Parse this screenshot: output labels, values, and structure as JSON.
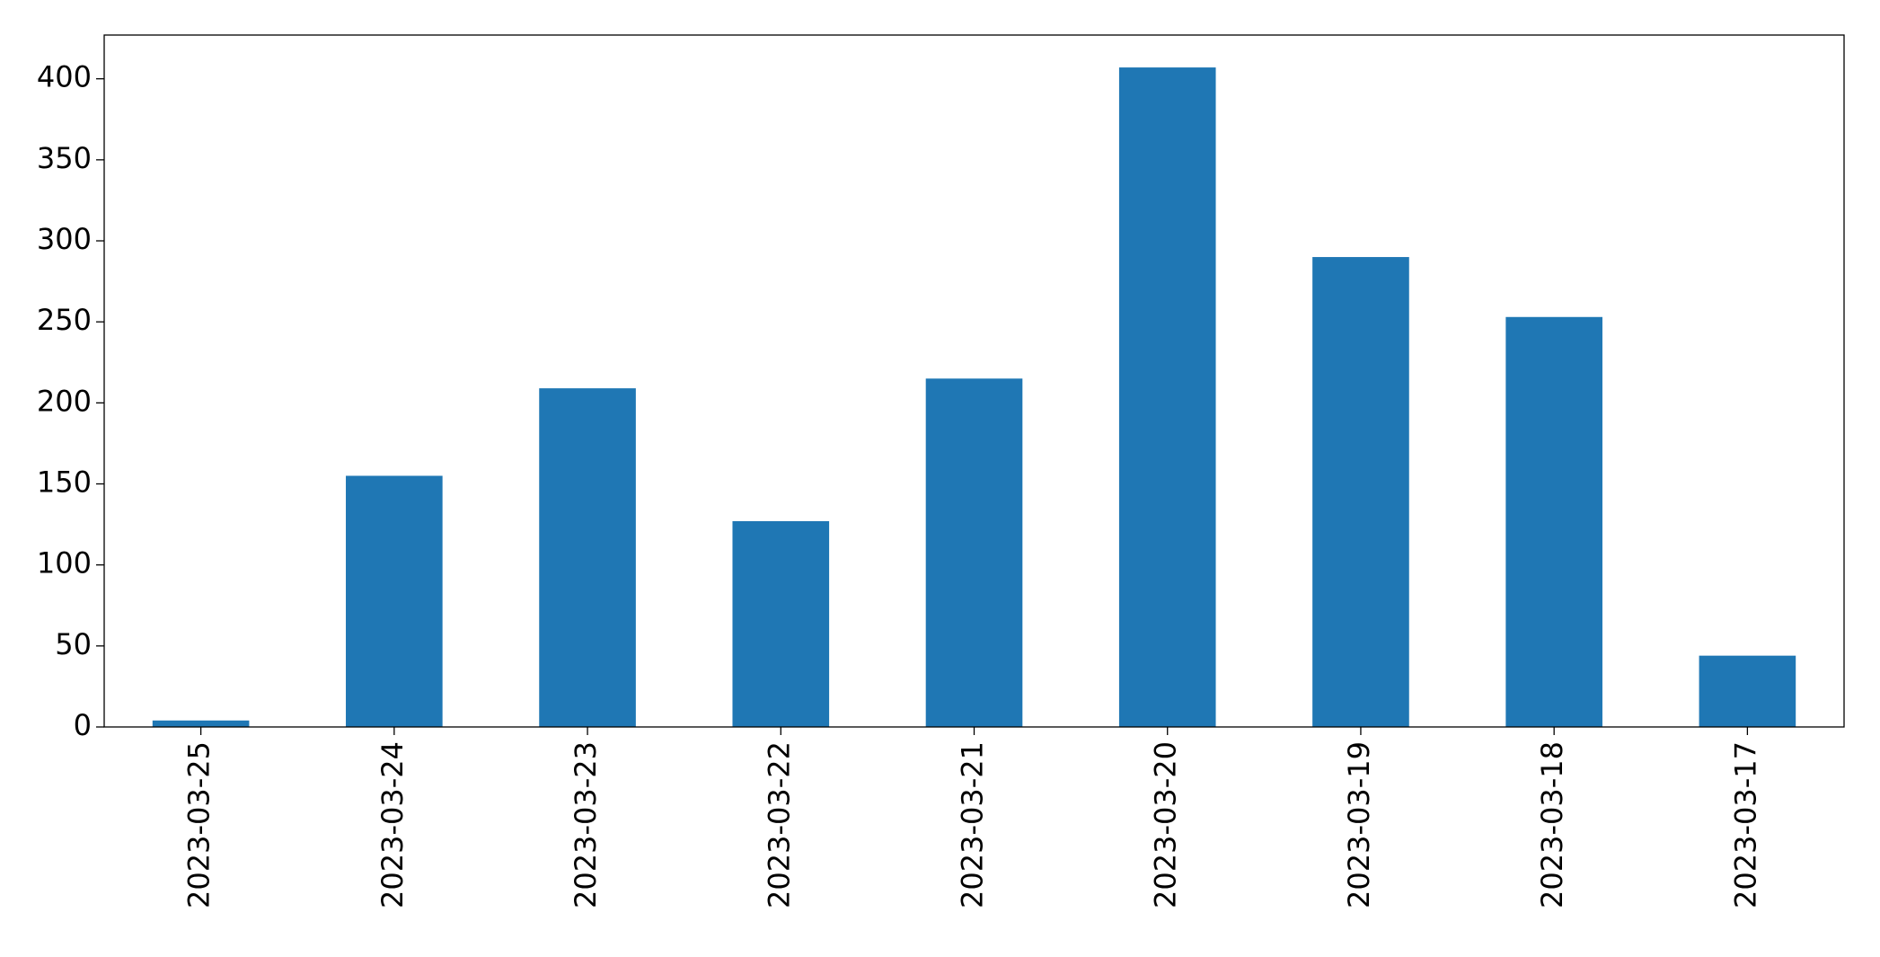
{
  "chart_data": {
    "type": "bar",
    "categories": [
      "2023-03-25",
      "2023-03-24",
      "2023-03-23",
      "2023-03-22",
      "2023-03-21",
      "2023-03-20",
      "2023-03-19",
      "2023-03-18",
      "2023-03-17"
    ],
    "values": [
      4,
      155,
      209,
      127,
      215,
      407,
      290,
      253,
      44
    ],
    "color": "#1f77b4",
    "ylim": [
      0,
      427
    ],
    "yticks": [
      0,
      50,
      100,
      150,
      200,
      250,
      300,
      350,
      400
    ],
    "grid": false
  }
}
